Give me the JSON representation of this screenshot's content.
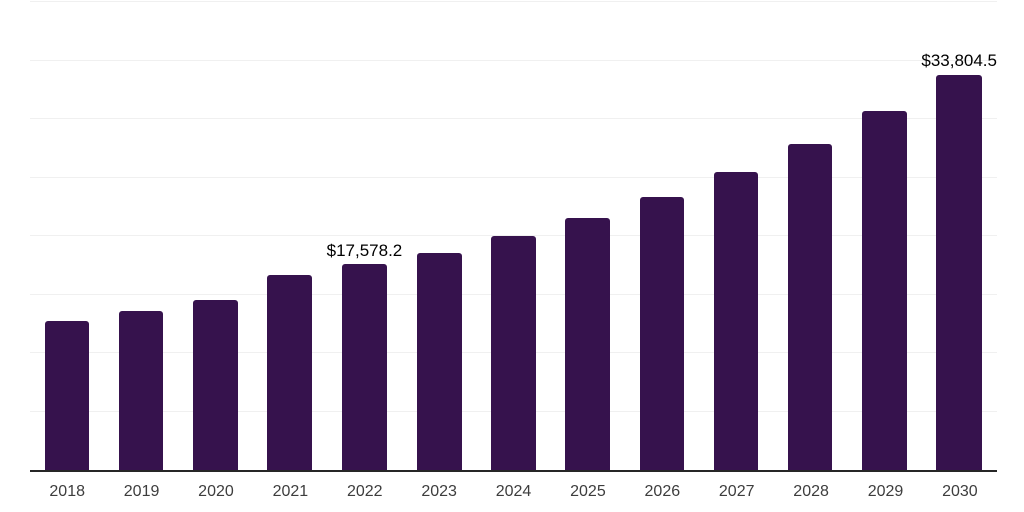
{
  "chart_data": {
    "type": "bar",
    "title": "",
    "xlabel": "",
    "ylabel": "",
    "categories": [
      "2018",
      "2019",
      "2020",
      "2021",
      "2022",
      "2023",
      "2024",
      "2025",
      "2026",
      "2027",
      "2028",
      "2029",
      "2030"
    ],
    "values": [
      12700,
      13600,
      14500,
      16640,
      17578.2,
      18580,
      20000,
      21560,
      23320,
      25510,
      27880,
      30720,
      33804.5
    ],
    "point_labels": [
      "",
      "",
      "",
      "",
      "$17,578.2",
      "",
      "",
      "",
      "",
      "",
      "",
      "",
      "$33,804.5"
    ],
    "ylim": [
      0,
      40000
    ],
    "grid_step": 5000,
    "grid": "horizontal",
    "legend_position": "none",
    "colors": {
      "bar": "#36124D",
      "grid_line": "#f0f0f0",
      "axis_line": "#262626",
      "data_label_text": "#000000",
      "tick_label_text": "#3d3d3d",
      "background": "#ffffff"
    }
  }
}
